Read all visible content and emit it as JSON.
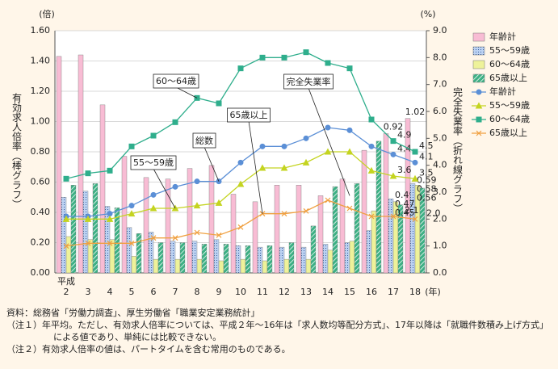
{
  "chart_data": {
    "type": "bar_line",
    "left_unit": "(倍)",
    "right_unit": "(%)",
    "y_label": "有効求人倍率（棒グラフ）",
    "y2_label": "完全失業率（折れ線グラフ）",
    "x_prefix": "平成",
    "x_unit": "(年)",
    "categories": [
      "2",
      "3",
      "4",
      "5",
      "6",
      "7",
      "8",
      "9",
      "10",
      "11",
      "12",
      "13",
      "14",
      "15",
      "16",
      "17",
      "18"
    ],
    "ylim": [
      0,
      1.6
    ],
    "yticks": [
      {
        "value": 0,
        "label": "0.00"
      },
      {
        "value": 0.2,
        "label": "0.20"
      },
      {
        "value": 0.4,
        "label": "0.40"
      },
      {
        "value": 0.6,
        "label": "0.60"
      },
      {
        "value": 0.8,
        "label": "0.80"
      },
      {
        "value": 1,
        "label": "1.00"
      },
      {
        "value": 1.2,
        "label": "1.20"
      },
      {
        "value": 1.4,
        "label": "1.40"
      },
      {
        "value": 1.6,
        "label": "1.60"
      }
    ],
    "y2lim": [
      0,
      9
    ],
    "y2ticks": [
      {
        "value": 0,
        "label": "0.0"
      },
      {
        "value": 1,
        "label": "1.0"
      },
      {
        "value": 2,
        "label": "2.0"
      },
      {
        "value": 3,
        "label": "3.0"
      },
      {
        "value": 4,
        "label": "4.0"
      },
      {
        "value": 5,
        "label": "5.0"
      },
      {
        "value": 6,
        "label": "6.0"
      },
      {
        "value": 7,
        "label": "7.0"
      },
      {
        "value": 8,
        "label": "8.0"
      },
      {
        "value": 9,
        "label": "9.0"
      }
    ],
    "grid": true,
    "series": [
      {
        "name": "年齢計",
        "type": "bar",
        "color": "#f8bcd4",
        "pattern": "solid",
        "values": [
          1.43,
          1.44,
          1.11,
          0.77,
          0.63,
          0.62,
          0.69,
          0.71,
          0.52,
          0.47,
          0.58,
          0.58,
          0.51,
          0.62,
          0.81,
          0.92,
          1.02
        ],
        "value_labels": [
          null,
          null,
          null,
          null,
          null,
          null,
          null,
          null,
          null,
          null,
          null,
          null,
          null,
          null,
          null,
          "0.92",
          "1.02"
        ]
      },
      {
        "name": "55～59歳",
        "type": "bar",
        "color": "#bcd2f2",
        "pattern": "dots",
        "values": [
          0.5,
          0.54,
          0.44,
          0.3,
          0.27,
          0.21,
          0.21,
          0.22,
          0.18,
          0.17,
          0.17,
          0.17,
          0.19,
          0.2,
          0.28,
          0.49,
          0.59
        ],
        "value_labels": [
          null,
          null,
          null,
          null,
          null,
          null,
          null,
          null,
          null,
          null,
          null,
          null,
          null,
          null,
          null,
          "0.49",
          "0.59"
        ]
      },
      {
        "name": "60～64歳",
        "type": "bar",
        "color": "#eef29a",
        "pattern": "solid",
        "values": [
          0.24,
          0.22,
          0.22,
          0.11,
          0.09,
          0.09,
          0.09,
          0.08,
          0.09,
          0.08,
          0.09,
          0.09,
          0.15,
          0.21,
          0.41,
          0.47,
          0.58
        ],
        "value_labels": [
          null,
          null,
          null,
          null,
          null,
          null,
          null,
          null,
          null,
          null,
          null,
          null,
          null,
          null,
          null,
          "0.47",
          "0.58"
        ]
      },
      {
        "name": "65歳以上",
        "type": "bar",
        "color": "#3cb084",
        "pattern": "hatch",
        "values": [
          0.58,
          0.59,
          0.43,
          0.26,
          0.2,
          0.2,
          0.19,
          0.19,
          0.18,
          0.18,
          0.2,
          0.31,
          0.57,
          0.59,
          0.87,
          0.45,
          0.56
        ],
        "value_labels": [
          null,
          null,
          null,
          null,
          null,
          null,
          null,
          null,
          null,
          null,
          null,
          null,
          null,
          null,
          null,
          "0.45",
          "0.56"
        ]
      },
      {
        "name": "年齢計",
        "type": "line",
        "axis": "y2",
        "color": "#5b8fd6",
        "marker": "circle",
        "values": [
          2.1,
          2.1,
          2.2,
          2.5,
          2.9,
          3.2,
          3.4,
          3.4,
          4.1,
          4.7,
          4.7,
          5.0,
          5.4,
          5.3,
          4.7,
          4.4,
          4.1
        ],
        "value_labels": [
          null,
          null,
          null,
          null,
          null,
          null,
          null,
          null,
          null,
          null,
          null,
          null,
          null,
          null,
          null,
          "4.4",
          "4.1"
        ]
      },
      {
        "name": "55～59歳",
        "type": "line",
        "axis": "y2",
        "color": "#c4d420",
        "marker": "triangle",
        "values": [
          2.0,
          2.0,
          2.0,
          2.2,
          2.4,
          2.4,
          2.5,
          2.6,
          3.3,
          3.9,
          3.9,
          4.1,
          4.5,
          4.5,
          3.8,
          3.6,
          3.5
        ],
        "value_labels": [
          null,
          null,
          null,
          null,
          null,
          null,
          null,
          null,
          null,
          null,
          null,
          null,
          null,
          null,
          null,
          "3.6",
          "3.5"
        ]
      },
      {
        "name": "60～64歳",
        "type": "line",
        "axis": "y2",
        "color": "#2fae8c",
        "marker": "square",
        "values": [
          3.5,
          3.7,
          3.8,
          4.7,
          5.1,
          5.6,
          6.5,
          6.3,
          7.6,
          8.0,
          8.0,
          8.2,
          7.8,
          7.6,
          5.7,
          4.9,
          4.5
        ],
        "value_labels": [
          null,
          null,
          null,
          null,
          null,
          null,
          null,
          null,
          null,
          null,
          null,
          null,
          null,
          null,
          null,
          "4.9",
          "4.5"
        ]
      },
      {
        "name": "65歳以上",
        "type": "line",
        "axis": "y2",
        "color": "#f0a040",
        "marker": "cross",
        "values": [
          1.0,
          1.1,
          1.1,
          1.1,
          1.3,
          1.3,
          1.5,
          1.4,
          1.7,
          2.2,
          2.2,
          2.3,
          2.7,
          2.4,
          2.1,
          2.1,
          2.0
        ],
        "value_labels": [
          null,
          null,
          null,
          null,
          null,
          null,
          null,
          null,
          null,
          null,
          null,
          null,
          null,
          null,
          null,
          "2.1",
          "2.0"
        ]
      }
    ],
    "annotations": [
      "60～64歳",
      "65歳以上",
      "総数",
      "55～59歳",
      "完全失業率"
    ],
    "legend": "right"
  },
  "notes": [
    "資料：総務省「労働力調査」、厚生労働省「職業安定業務統計」",
    "（注１）年平均。ただし、有効求人倍率については、平成２年～16年は「求人数均等配分方式」、17年以降は「就職件数積み上げ方式」による値であり、単純には比較できない。",
    "（注２）有効求人倍率の値は、パートタイムを含む常用のものである。"
  ]
}
